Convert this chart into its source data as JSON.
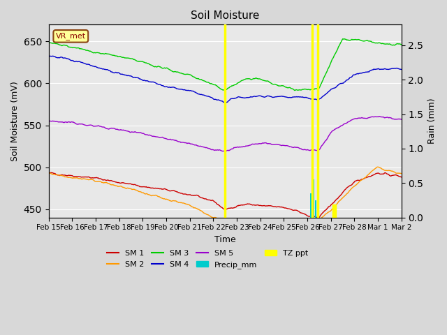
{
  "title": "Soil Moisture",
  "xlabel": "Time",
  "ylabel_left": "Soil Moisture (mV)",
  "ylabel_right": "Rain (mm)",
  "ylim_left": [
    440,
    670
  ],
  "ylim_right": [
    0.0,
    2.8
  ],
  "background_color": "#d8d8d8",
  "plot_bg_color": "#e8e8e8",
  "annotation_label": "VR_met",
  "x_tick_labels": [
    "Feb 15",
    "Feb 16",
    "Feb 17",
    "Feb 18",
    "Feb 19",
    "Feb 20",
    "Feb 21",
    "Feb 22",
    "Feb 23",
    "Feb 24",
    "Feb 25",
    "Feb 26",
    "Feb 27",
    "Feb 28",
    "Mar 1",
    "Mar 2"
  ],
  "sm1_color": "#cc0000",
  "sm2_color": "#ff9900",
  "sm3_color": "#00cc00",
  "sm4_color": "#0000cc",
  "sm5_color": "#9900cc",
  "precip_color": "#00cccc",
  "tz_color": "#ffff00"
}
